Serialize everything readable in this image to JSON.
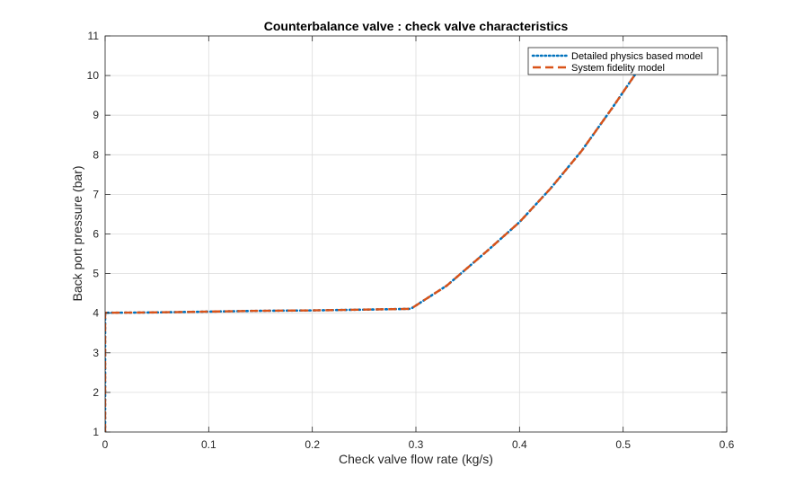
{
  "chart_data": {
    "type": "line",
    "title": "Counterbalance valve : check valve characteristics",
    "xlabel": "Check valve flow rate (kg/s)",
    "ylabel": "Back port pressure (bar)",
    "xlim": [
      0,
      0.6
    ],
    "ylim": [
      1,
      11
    ],
    "xticks": [
      0,
      0.1,
      0.2,
      0.3,
      0.4,
      0.5,
      0.6
    ],
    "xtick_labels": [
      "0",
      "0.1",
      "0.2",
      "0.3",
      "0.4",
      "0.5",
      "0.6"
    ],
    "yticks": [
      1,
      2,
      3,
      4,
      5,
      6,
      7,
      8,
      9,
      10,
      11
    ],
    "ytick_labels": [
      "1",
      "2",
      "3",
      "4",
      "5",
      "6",
      "7",
      "8",
      "9",
      "10",
      "11"
    ],
    "grid": true,
    "legend_position": "top-right",
    "series": [
      {
        "name": "Detailed physics based model",
        "color": "#0072BD",
        "style": "dotted",
        "x": [
          0,
          0,
          0.05,
          0.1,
          0.15,
          0.2,
          0.25,
          0.295,
          0.33,
          0.37,
          0.4,
          0.43,
          0.46,
          0.49,
          0.52
        ],
        "y": [
          1,
          4.01,
          4.02,
          4.04,
          4.06,
          4.07,
          4.09,
          4.11,
          4.7,
          5.6,
          6.3,
          7.15,
          8.1,
          9.2,
          10.35
        ]
      },
      {
        "name": "System fidelity model",
        "color": "#D95319",
        "style": "dashed",
        "x": [
          0,
          0,
          0.05,
          0.1,
          0.15,
          0.2,
          0.25,
          0.295,
          0.33,
          0.37,
          0.4,
          0.43,
          0.46,
          0.49,
          0.52
        ],
        "y": [
          1,
          4.01,
          4.02,
          4.04,
          4.06,
          4.07,
          4.09,
          4.11,
          4.7,
          5.6,
          6.3,
          7.15,
          8.1,
          9.2,
          10.35
        ]
      }
    ]
  }
}
